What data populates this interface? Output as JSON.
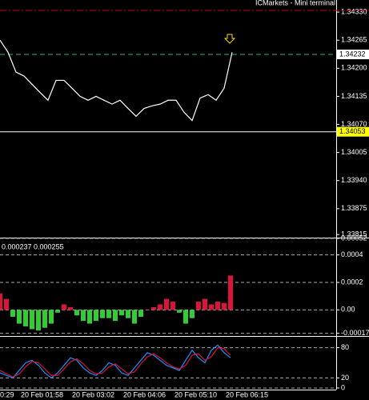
{
  "chart_data": [
    {
      "type": "line",
      "title": "ICMarkets - Mini terminal",
      "color": "#ffffff",
      "values": [
        1.34265,
        1.34237,
        1.34191,
        1.34182,
        1.34163,
        1.34144,
        1.34126,
        1.34172,
        1.34172,
        1.34154,
        1.34135,
        1.34126,
        1.34135,
        1.34126,
        1.34117,
        1.34126,
        1.34107,
        1.34089,
        1.34107,
        1.34113,
        1.34117,
        1.34126,
        1.34126,
        1.34098,
        1.34079,
        1.34131,
        1.34139,
        1.34126,
        1.34154,
        1.34237
      ],
      "ylim": [
        1.33808,
        1.34358
      ],
      "yticks": [
        {
          "value": 1.3433,
          "label": "1.34330"
        },
        1.34265,
        {
          "value": 1.342,
          "label": "1.34200"
        },
        1.34135,
        {
          "value": 1.3407,
          "label": "1.34070"
        },
        1.34005,
        {
          "value": 1.3394,
          "label": "1.33940"
        },
        1.33875,
        1.33815
      ],
      "grid": false,
      "levels": [
        {
          "value": 1.34334,
          "color": "#c00000",
          "dash": "dash-dot"
        },
        {
          "value": 1.34232,
          "label": "1.34232",
          "color": "#3cb371",
          "dash": "dash",
          "box": "#ffffff"
        },
        {
          "value": 1.34053,
          "label": "1.34053",
          "color": "#ffffff",
          "dash": "solid",
          "box": "#ffff00"
        }
      ]
    },
    {
      "type": "bar",
      "header": "0.000237 0.000255",
      "up_color": "#dc143c",
      "down_color": "#32cd32",
      "values": [
        0.00012,
        8e-05,
        -5e-05,
        -0.0001,
        -0.00012,
        -0.00014,
        -0.00015,
        -0.00013,
        -0.0001,
        -2e-05,
        4e-05,
        2e-05,
        -4e-05,
        -8e-05,
        -0.0001,
        -8e-05,
        -6e-05,
        -6e-05,
        -8e-05,
        -4e-05,
        -6e-05,
        -0.0001,
        -5e-05,
        0,
        2e-05,
        4e-05,
        8e-05,
        6e-05,
        -2e-05,
        -0.0001,
        -6e-05,
        6e-05,
        8e-05,
        4e-05,
        6e-05,
        5e-05,
        0.00025
      ],
      "ylim": [
        -0.00019,
        0.00052
      ],
      "yticks": [
        0.00052,
        0.0004,
        0.0002,
        {
          "value": 0,
          "label": "0.00"
        },
        -0.00017
      ],
      "grid": true
    },
    {
      "type": "line",
      "series": [
        {
          "color": "#1e90ff",
          "values": [
            30,
            25,
            20,
            35,
            50,
            55,
            45,
            30,
            20,
            30,
            45,
            60,
            55,
            40,
            30,
            25,
            35,
            50,
            45,
            30,
            25,
            40,
            55,
            70,
            65,
            55,
            45,
            40,
            35,
            55,
            75,
            60,
            50,
            75,
            85,
            70,
            60
          ]
        },
        {
          "color": "#dc143c",
          "values": [
            35,
            28,
            22,
            28,
            42,
            53,
            50,
            38,
            25,
            25,
            38,
            52,
            58,
            48,
            35,
            28,
            30,
            42,
            48,
            38,
            28,
            32,
            48,
            62,
            68,
            60,
            50,
            42,
            38,
            45,
            65,
            68,
            55,
            62,
            80,
            78,
            65
          ]
        }
      ],
      "ylim": [
        0,
        100
      ],
      "yticks": [
        80,
        20,
        0
      ],
      "grid": true,
      "time_labels": [
        "0:29",
        "20 Feb 01:58",
        "20 Feb 03:02",
        "20 Feb 04:06",
        "20 Feb 05:10",
        "20 Feb 06:15"
      ]
    }
  ]
}
